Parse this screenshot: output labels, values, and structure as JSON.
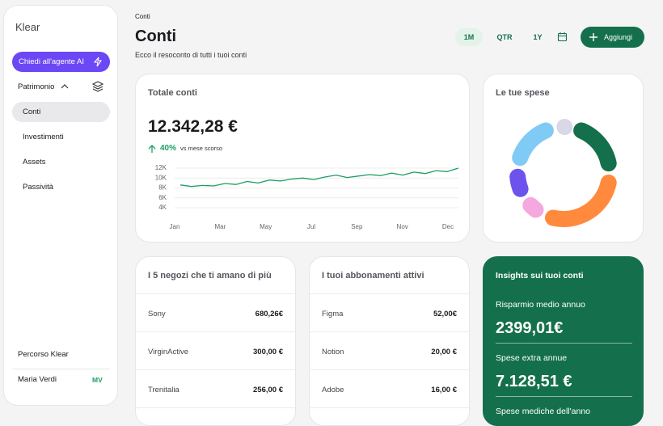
{
  "sidebar": {
    "brand": "Klear",
    "ai_button": "Chiedi all'agente AI",
    "section": "Patrimonio",
    "nav": [
      "Conti",
      "Investimenti",
      "Assets",
      "Passività"
    ],
    "active": "Conti",
    "footer_link": "Percorso Klear",
    "user": "Maria Verdi",
    "initials": "MV"
  },
  "header": {
    "breadcrumb": "Conti",
    "title": "Conti",
    "subtitle": "Ecco il resoconto di tutti i tuoi conti",
    "periods": [
      "1M",
      "QTR",
      "1Y"
    ],
    "selected_period": "1M",
    "add_button": "Aggiungi"
  },
  "total_card": {
    "title": "Totale conti",
    "amount": "12.342,28 €",
    "change": "40%",
    "change_note": "vs mese scorso",
    "chart": {
      "type": "line",
      "color": "#1f9d62",
      "x": [
        0,
        0.25,
        0.5,
        0.75,
        1,
        1.25,
        1.5,
        1.75,
        2,
        2.25,
        2.5,
        2.75,
        3,
        3.25,
        3.5,
        3.75,
        4,
        4.25,
        4.5,
        4.75,
        5,
        5.25,
        5.5,
        5.75,
        6,
        6.25
      ],
      "values": [
        8600,
        8300,
        8500,
        8400,
        8900,
        8700,
        9300,
        9000,
        9600,
        9400,
        9800,
        10000,
        9700,
        10200,
        10600,
        10100,
        10400,
        10700,
        10500,
        11000,
        10600,
        11200,
        10900,
        11500,
        11300,
        12000
      ],
      "xlim": [
        0,
        6.25
      ],
      "xticks": [
        {
          "value": 0,
          "label": "Jan"
        },
        {
          "value": 1,
          "label": "Mar"
        },
        {
          "value": 2,
          "label": "May"
        },
        {
          "value": 3,
          "label": "Jul"
        },
        {
          "value": 4,
          "label": "Sep"
        },
        {
          "value": 5,
          "label": "Nov"
        },
        {
          "value": 6,
          "label": "Dec"
        }
      ],
      "ylim": [
        4000,
        12000
      ],
      "yticks": [
        {
          "value": 4000,
          "label": "4K"
        },
        {
          "value": 6000,
          "label": "6K"
        },
        {
          "value": 8000,
          "label": "8K"
        },
        {
          "value": 10000,
          "label": "10K"
        },
        {
          "value": 12000,
          "label": "12K"
        }
      ],
      "grid": true
    }
  },
  "spending_card": {
    "title": "Le tue spese",
    "chart": {
      "type": "donut",
      "values": [
        6,
        22,
        32,
        9,
        11,
        20
      ],
      "colors": [
        "#d9d8e6",
        "#14704c",
        "#ff8a3d",
        "#f4a8de",
        "#6d52ee",
        "#7fcbf5"
      ]
    }
  },
  "shops_card": {
    "title": "I 5 negozi che ti amano di più",
    "rows": [
      [
        "Sony",
        "680,26€"
      ],
      [
        "VirginActive",
        "300,00 €"
      ],
      [
        "Trenitalia",
        "256,00 €"
      ]
    ]
  },
  "subs_card": {
    "title": "I tuoi abbonamenti attivi",
    "rows": [
      [
        "Figma",
        "52,00€"
      ],
      [
        "Notion",
        "20,00 €"
      ],
      [
        "Adobe",
        "16,00 €"
      ]
    ]
  },
  "insights_card": {
    "title": "Insights sui tuoi conti",
    "items": [
      {
        "label": "Risparmio medio annuo",
        "value": "2399,01€"
      },
      {
        "label": "Spese extra annue",
        "value": "7.128,51 €"
      },
      {
        "label": "Spese mediche dell'anno"
      }
    ]
  }
}
